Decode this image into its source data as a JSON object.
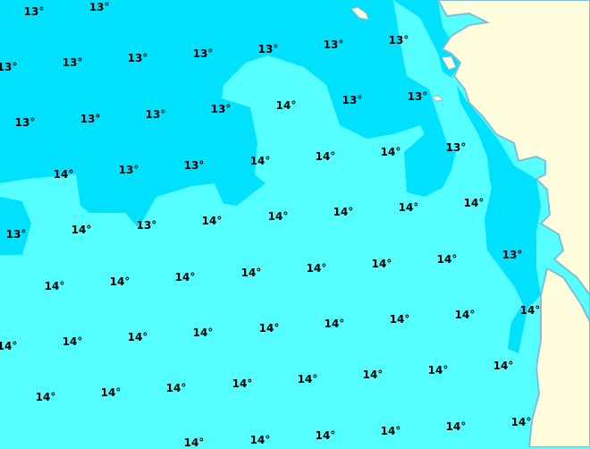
{
  "colors": {
    "sea_14": "#55FFFF",
    "sea_13": "#00E0FF",
    "land": "#FFFDDB",
    "coast": "#7FBFD8"
  },
  "labels": [
    "13°",
    "13°",
    "13°",
    "13°",
    "13°",
    "13°",
    "13°",
    "13°",
    "13°",
    "14°",
    "13°",
    "13°",
    "13°",
    "13°",
    "13°",
    "13°",
    "14°",
    "14°",
    "14°",
    "13°",
    "14°",
    "13°",
    "13°",
    "14°",
    "14°",
    "14°",
    "14°",
    "14°",
    "13°",
    "14°",
    "13°",
    "14°",
    "14°",
    "14°",
    "14°",
    "13°",
    "14°",
    "14°",
    "14°",
    "14°",
    "14°",
    "14°",
    "14°",
    "14°",
    "14°",
    "14°",
    "14°",
    "14°",
    "14°",
    "14°",
    "14°",
    "14°",
    "14°",
    "14°",
    "14°",
    "14°",
    "14°",
    "14°",
    "14°",
    "14°",
    "14°",
    "14°",
    "14°",
    "14°"
  ]
}
